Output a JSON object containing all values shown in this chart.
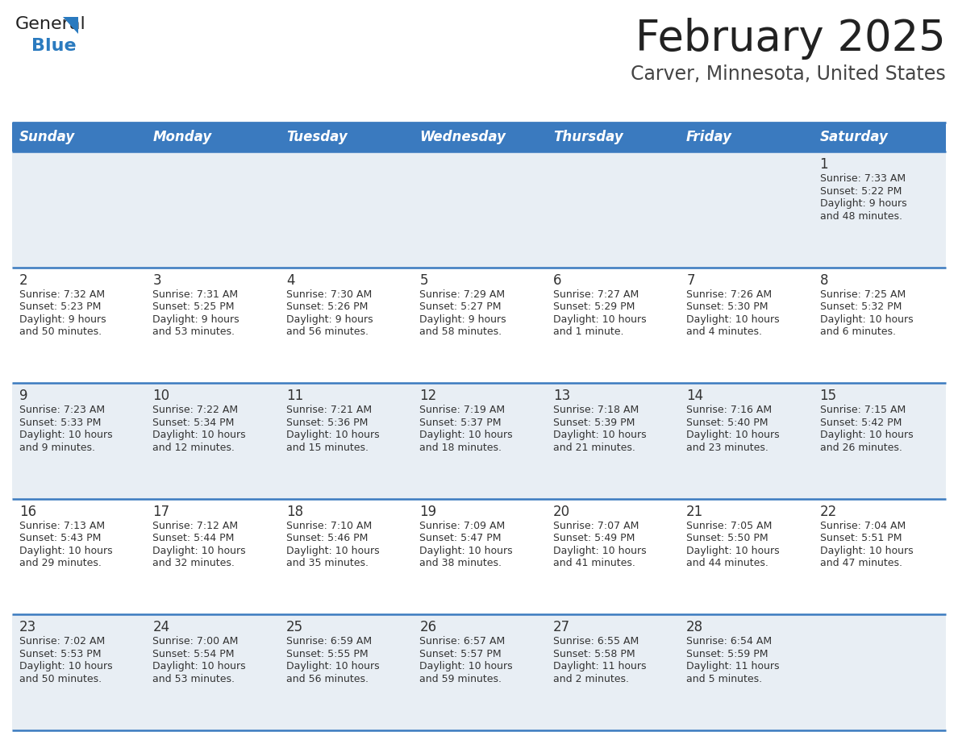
{
  "title": "February 2025",
  "subtitle": "Carver, Minnesota, United States",
  "header_bg": "#3a7abf",
  "header_text_color": "#ffffff",
  "day_names": [
    "Sunday",
    "Monday",
    "Tuesday",
    "Wednesday",
    "Thursday",
    "Friday",
    "Saturday"
  ],
  "row_bg_light": "#e8eef4",
  "row_bg_white": "#ffffff",
  "cell_border_color": "#3a7abf",
  "number_color": "#333333",
  "text_color": "#333333",
  "calendar_data": [
    [
      null,
      null,
      null,
      null,
      null,
      null,
      {
        "day": 1,
        "sunrise": "7:33 AM",
        "sunset": "5:22 PM",
        "daylight": "9 hours and 48 minutes"
      }
    ],
    [
      {
        "day": 2,
        "sunrise": "7:32 AM",
        "sunset": "5:23 PM",
        "daylight": "9 hours and 50 minutes"
      },
      {
        "day": 3,
        "sunrise": "7:31 AM",
        "sunset": "5:25 PM",
        "daylight": "9 hours and 53 minutes"
      },
      {
        "day": 4,
        "sunrise": "7:30 AM",
        "sunset": "5:26 PM",
        "daylight": "9 hours and 56 minutes"
      },
      {
        "day": 5,
        "sunrise": "7:29 AM",
        "sunset": "5:27 PM",
        "daylight": "9 hours and 58 minutes"
      },
      {
        "day": 6,
        "sunrise": "7:27 AM",
        "sunset": "5:29 PM",
        "daylight": "10 hours and 1 minute"
      },
      {
        "day": 7,
        "sunrise": "7:26 AM",
        "sunset": "5:30 PM",
        "daylight": "10 hours and 4 minutes"
      },
      {
        "day": 8,
        "sunrise": "7:25 AM",
        "sunset": "5:32 PM",
        "daylight": "10 hours and 6 minutes"
      }
    ],
    [
      {
        "day": 9,
        "sunrise": "7:23 AM",
        "sunset": "5:33 PM",
        "daylight": "10 hours and 9 minutes"
      },
      {
        "day": 10,
        "sunrise": "7:22 AM",
        "sunset": "5:34 PM",
        "daylight": "10 hours and 12 minutes"
      },
      {
        "day": 11,
        "sunrise": "7:21 AM",
        "sunset": "5:36 PM",
        "daylight": "10 hours and 15 minutes"
      },
      {
        "day": 12,
        "sunrise": "7:19 AM",
        "sunset": "5:37 PM",
        "daylight": "10 hours and 18 minutes"
      },
      {
        "day": 13,
        "sunrise": "7:18 AM",
        "sunset": "5:39 PM",
        "daylight": "10 hours and 21 minutes"
      },
      {
        "day": 14,
        "sunrise": "7:16 AM",
        "sunset": "5:40 PM",
        "daylight": "10 hours and 23 minutes"
      },
      {
        "day": 15,
        "sunrise": "7:15 AM",
        "sunset": "5:42 PM",
        "daylight": "10 hours and 26 minutes"
      }
    ],
    [
      {
        "day": 16,
        "sunrise": "7:13 AM",
        "sunset": "5:43 PM",
        "daylight": "10 hours and 29 minutes"
      },
      {
        "day": 17,
        "sunrise": "7:12 AM",
        "sunset": "5:44 PM",
        "daylight": "10 hours and 32 minutes"
      },
      {
        "day": 18,
        "sunrise": "7:10 AM",
        "sunset": "5:46 PM",
        "daylight": "10 hours and 35 minutes"
      },
      {
        "day": 19,
        "sunrise": "7:09 AM",
        "sunset": "5:47 PM",
        "daylight": "10 hours and 38 minutes"
      },
      {
        "day": 20,
        "sunrise": "7:07 AM",
        "sunset": "5:49 PM",
        "daylight": "10 hours and 41 minutes"
      },
      {
        "day": 21,
        "sunrise": "7:05 AM",
        "sunset": "5:50 PM",
        "daylight": "10 hours and 44 minutes"
      },
      {
        "day": 22,
        "sunrise": "7:04 AM",
        "sunset": "5:51 PM",
        "daylight": "10 hours and 47 minutes"
      }
    ],
    [
      {
        "day": 23,
        "sunrise": "7:02 AM",
        "sunset": "5:53 PM",
        "daylight": "10 hours and 50 minutes"
      },
      {
        "day": 24,
        "sunrise": "7:00 AM",
        "sunset": "5:54 PM",
        "daylight": "10 hours and 53 minutes"
      },
      {
        "day": 25,
        "sunrise": "6:59 AM",
        "sunset": "5:55 PM",
        "daylight": "10 hours and 56 minutes"
      },
      {
        "day": 26,
        "sunrise": "6:57 AM",
        "sunset": "5:57 PM",
        "daylight": "10 hours and 59 minutes"
      },
      {
        "day": 27,
        "sunrise": "6:55 AM",
        "sunset": "5:58 PM",
        "daylight": "11 hours and 2 minutes"
      },
      {
        "day": 28,
        "sunrise": "6:54 AM",
        "sunset": "5:59 PM",
        "daylight": "11 hours and 5 minutes"
      },
      null
    ]
  ],
  "logo_general_color": "#222222",
  "logo_blue_color": "#2a7abf",
  "logo_triangle_color": "#2a7abf",
  "title_color": "#222222",
  "subtitle_color": "#444444",
  "title_fontsize": 38,
  "subtitle_fontsize": 17,
  "header_fontsize": 12,
  "day_num_fontsize": 12,
  "cell_text_fontsize": 9
}
